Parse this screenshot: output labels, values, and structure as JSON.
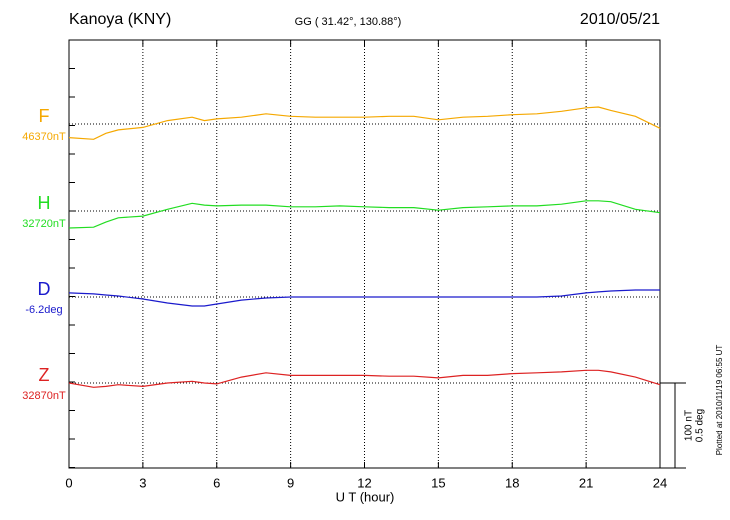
{
  "chart_data": {
    "type": "line",
    "title": "Kanoya (KNY)",
    "subtitle": "GG ( 31.42°, 130.88°)",
    "date": "2010/05/21",
    "x_label": "U T (hour)",
    "note": "Plotted at 2010/11/19 06:55 UT",
    "xlim": [
      0,
      24
    ],
    "xticks": [
      0,
      3,
      6,
      9,
      12,
      15,
      18,
      21,
      24
    ],
    "grid": true,
    "scale_bar": {
      "nT": {
        "value": 100,
        "label": "100 nT"
      },
      "deg": {
        "value": 0.5,
        "label": "0.5 deg"
      }
    },
    "x": [
      0,
      1,
      1.5,
      2,
      3,
      4,
      5,
      5.5,
      6,
      7,
      8,
      9,
      10,
      11,
      12,
      13,
      14,
      15,
      16,
      17,
      18,
      19,
      20,
      21,
      21.5,
      22,
      23,
      24
    ],
    "series": [
      {
        "name": "F",
        "color": "#f5a800",
        "scale": "nT",
        "baseline": {
          "value": 46370,
          "label": "46370nT"
        },
        "values": [
          46354,
          46352,
          46359,
          46363,
          46366,
          46374,
          46378,
          46374,
          46376,
          46378,
          46382,
          46379,
          46378,
          46378,
          46378,
          46379,
          46379,
          46375,
          46378,
          46379,
          46381,
          46382,
          46385,
          46389,
          46390,
          46386,
          46379,
          46365
        ]
      },
      {
        "name": "H",
        "color": "#22dd22",
        "scale": "nT",
        "baseline": {
          "value": 32720,
          "label": "32720nT"
        },
        "values": [
          32700,
          32701,
          32707,
          32712,
          32714,
          32722,
          32729,
          32727,
          32726,
          32727,
          32727,
          32725,
          32725,
          32726,
          32725,
          32724,
          32724,
          32721,
          32724,
          32725,
          32726,
          32726,
          32728,
          32732,
          32732,
          32731,
          32722,
          32718
        ]
      },
      {
        "name": "D",
        "color": "#1a1acc",
        "scale": "deg",
        "baseline": {
          "value": -6.2,
          "label": "-6.2deg"
        },
        "values": [
          -6.176,
          -6.182,
          -6.188,
          -6.194,
          -6.212,
          -6.235,
          -6.253,
          -6.253,
          -6.241,
          -6.218,
          -6.206,
          -6.2,
          -6.2,
          -6.2,
          -6.2,
          -6.2,
          -6.2,
          -6.2,
          -6.2,
          -6.2,
          -6.2,
          -6.2,
          -6.194,
          -6.176,
          -6.17,
          -6.165,
          -6.159,
          -6.159
        ]
      },
      {
        "name": "Z",
        "color": "#dd2222",
        "scale": "nT",
        "baseline": {
          "value": 32870,
          "label": "32870nT"
        },
        "values": [
          32870,
          32865,
          32866,
          32868,
          32866,
          32870,
          32872,
          32870,
          32869,
          32877,
          32882,
          32879,
          32879,
          32879,
          32879,
          32878,
          32878,
          32876,
          32879,
          32879,
          32881,
          32882,
          32883,
          32885,
          32885,
          32883,
          32877,
          32868
        ]
      }
    ]
  }
}
